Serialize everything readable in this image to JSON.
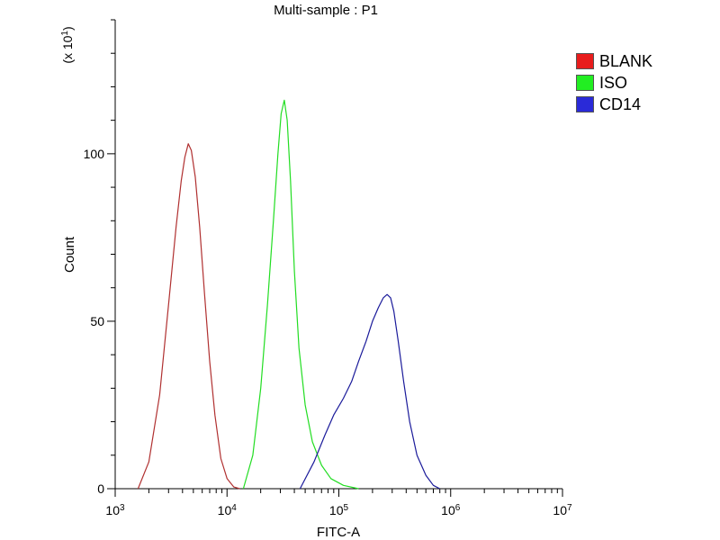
{
  "chart_data": {
    "type": "line",
    "title": "Multi-sample : P1",
    "xlabel": "FITC-A",
    "ylabel": "Count",
    "y_multiplier": "(x 10",
    "y_multiplier_exp": "1",
    "y_multiplier_close": ")",
    "x_scale": "log",
    "xlim": [
      1000,
      10000000
    ],
    "ylim": [
      0,
      140
    ],
    "x_ticks": [
      {
        "base": "10",
        "exp": "3",
        "value": 1000
      },
      {
        "base": "10",
        "exp": "4",
        "value": 10000
      },
      {
        "base": "10",
        "exp": "5",
        "value": 100000
      },
      {
        "base": "10",
        "exp": "6",
        "value": 1000000
      },
      {
        "base": "10",
        "exp": "7",
        "value": 10000000
      }
    ],
    "y_ticks": [
      "0",
      "50",
      "100"
    ],
    "grid": false,
    "legend_position": "right",
    "series": [
      {
        "name": "BLANK",
        "color": "#b03030",
        "points": [
          [
            1600,
            0
          ],
          [
            2000,
            8
          ],
          [
            2500,
            28
          ],
          [
            3000,
            55
          ],
          [
            3500,
            78
          ],
          [
            3900,
            92
          ],
          [
            4200,
            99
          ],
          [
            4500,
            103
          ],
          [
            4800,
            101
          ],
          [
            5200,
            93
          ],
          [
            5700,
            78
          ],
          [
            6300,
            58
          ],
          [
            7000,
            38
          ],
          [
            7800,
            22
          ],
          [
            8800,
            9
          ],
          [
            10000,
            3
          ],
          [
            11500,
            0.5
          ],
          [
            13000,
            0
          ]
        ]
      },
      {
        "name": "ISO",
        "color": "#22dd22",
        "points": [
          [
            14000,
            0
          ],
          [
            17000,
            10
          ],
          [
            20000,
            30
          ],
          [
            23000,
            55
          ],
          [
            26000,
            80
          ],
          [
            28500,
            100
          ],
          [
            30500,
            112
          ],
          [
            32500,
            116
          ],
          [
            34500,
            110
          ],
          [
            37000,
            92
          ],
          [
            40000,
            65
          ],
          [
            44000,
            42
          ],
          [
            50000,
            25
          ],
          [
            58000,
            14
          ],
          [
            70000,
            7
          ],
          [
            85000,
            3
          ],
          [
            110000,
            1
          ],
          [
            150000,
            0
          ]
        ]
      },
      {
        "name": "CD14",
        "color": "#1a1a9a",
        "points": [
          [
            45000,
            0
          ],
          [
            60000,
            8
          ],
          [
            75000,
            16
          ],
          [
            90000,
            22
          ],
          [
            110000,
            27
          ],
          [
            130000,
            32
          ],
          [
            150000,
            38
          ],
          [
            175000,
            44
          ],
          [
            200000,
            50
          ],
          [
            225000,
            54
          ],
          [
            250000,
            57
          ],
          [
            270000,
            58
          ],
          [
            290000,
            57
          ],
          [
            310000,
            53
          ],
          [
            340000,
            44
          ],
          [
            380000,
            32
          ],
          [
            430000,
            20
          ],
          [
            500000,
            10
          ],
          [
            600000,
            4
          ],
          [
            700000,
            1
          ],
          [
            800000,
            0
          ]
        ]
      }
    ]
  },
  "legend": {
    "items": [
      {
        "label": "BLANK",
        "color": "#e81c1c"
      },
      {
        "label": "ISO",
        "color": "#22ee22"
      },
      {
        "label": "CD14",
        "color": "#2a2ad8"
      }
    ]
  }
}
